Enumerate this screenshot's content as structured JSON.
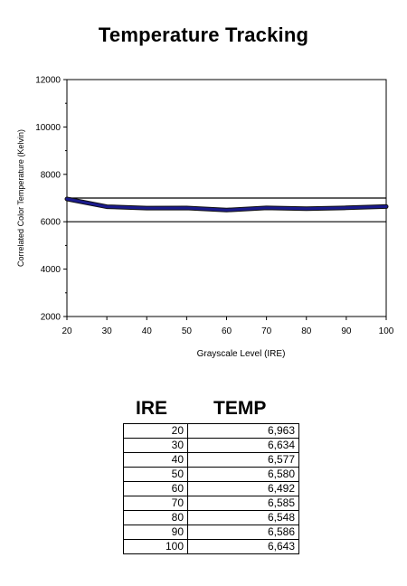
{
  "page_title": "Temperature Tracking",
  "chart_data": {
    "type": "line",
    "title": "Temperature Tracking",
    "xlabel": "Grayscale Level (IRE)",
    "ylabel": "Correlated Color Temperature (Kelvin)",
    "xlim": [
      20,
      100
    ],
    "ylim": [
      2000,
      12000
    ],
    "x_ticks": [
      "20",
      "30",
      "40",
      "50",
      "60",
      "70",
      "80",
      "90",
      "100"
    ],
    "y_ticks": [
      "2000",
      "4000",
      "6000",
      "8000",
      "10000",
      "12000"
    ],
    "reference_lines": [
      6000,
      7000
    ],
    "grid": false,
    "legend": "none",
    "series": [
      {
        "color": "#1a1a8c",
        "x": [
          20,
          30,
          40,
          50,
          60,
          70,
          80,
          90,
          100
        ],
        "y": [
          6963,
          6634,
          6577,
          6580,
          6492,
          6585,
          6548,
          6586,
          6643
        ]
      }
    ]
  },
  "table": {
    "headers": {
      "ire": "IRE",
      "temp": "TEMP"
    },
    "rows": [
      {
        "ire": "20",
        "temp": "6,963"
      },
      {
        "ire": "30",
        "temp": "6,634"
      },
      {
        "ire": "40",
        "temp": "6,577"
      },
      {
        "ire": "50",
        "temp": "6,580"
      },
      {
        "ire": "60",
        "temp": "6,492"
      },
      {
        "ire": "70",
        "temp": "6,585"
      },
      {
        "ire": "80",
        "temp": "6,548"
      },
      {
        "ire": "90",
        "temp": "6,586"
      },
      {
        "ire": "100",
        "temp": "6,643"
      }
    ]
  }
}
